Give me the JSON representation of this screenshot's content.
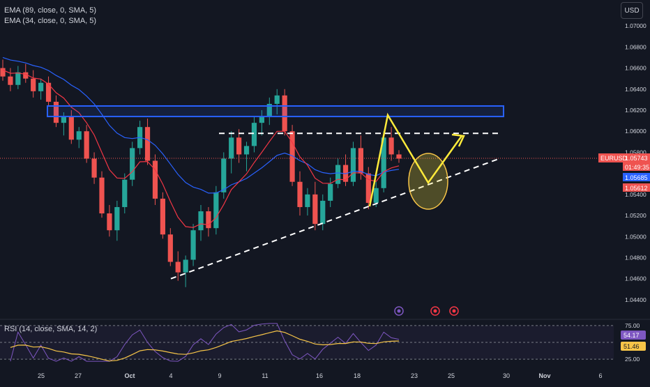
{
  "indicators": {
    "ema_slow_label": "EMA (89, close, 0, SMA, 5)",
    "ema_fast_label": "EMA (34, close, 0, SMA, 5)",
    "rsi_label": "RSI (14, close, SMA, 14, 2)"
  },
  "toolbar": {
    "currency": "USD"
  },
  "colors": {
    "background": "#131722",
    "candle_up": "#26a69a",
    "candle_down": "#ef5350",
    "ema_slow": "#2962ff",
    "ema_fast": "#f23645",
    "rsi_line": "#7e57c2",
    "rsi_ma": "#f7c548",
    "resistance_box": "#2962ff",
    "projection": "#ffeb3b"
  },
  "chart_data": {
    "type": "candlestick",
    "symbol": "EURUSD",
    "price_axis": {
      "ticks": [
        "1.07000",
        "1.06800",
        "1.06600",
        "1.06400",
        "1.06200",
        "1.06000",
        "1.05800",
        "1.05400",
        "1.05200",
        "1.05000",
        "1.04800",
        "1.04600",
        "1.04400"
      ],
      "range": [
        1.043,
        1.0718
      ]
    },
    "time_axis": {
      "labels": [
        "25",
        "27",
        "Oct",
        "4",
        "9",
        "11",
        "16",
        "18",
        "23",
        "25",
        "30",
        "Nov",
        "6"
      ]
    },
    "price_badges": {
      "last_symbol": "EURUSD",
      "last_price": "1.05743",
      "countdown": "01:49:35",
      "ema_slow_value": "1.05685",
      "ema_fast_value": "1.05612"
    },
    "rsi": {
      "axis_labels": [
        "75.00",
        "25.00"
      ],
      "value": "54.17",
      "ma_value": "51.46",
      "range": [
        20,
        80
      ]
    },
    "levels": {
      "resistance_zone": [
        1.0614,
        1.0624
      ],
      "dashed_resistance": 1.0598,
      "support_trend_start": [
        "4",
        1.046
      ],
      "support_trend_end": [
        "30",
        1.0574
      ]
    },
    "candles_approx": [
      [
        1.066,
        1.0668,
        1.0648,
        1.0652
      ],
      [
        1.0652,
        1.066,
        1.0638,
        1.0644
      ],
      [
        1.0644,
        1.0662,
        1.064,
        1.0656
      ],
      [
        1.0656,
        1.0664,
        1.0646,
        1.065
      ],
      [
        1.065,
        1.0658,
        1.0632,
        1.0638
      ],
      [
        1.0638,
        1.065,
        1.063,
        1.0646
      ],
      [
        1.0646,
        1.0652,
        1.0624,
        1.0628
      ],
      [
        1.0628,
        1.0634,
        1.0604,
        1.0608
      ],
      [
        1.0608,
        1.0618,
        1.0596,
        1.0614
      ],
      [
        1.0614,
        1.062,
        1.0588,
        1.0592
      ],
      [
        1.0592,
        1.0604,
        1.0584,
        1.06
      ],
      [
        1.06,
        1.0606,
        1.057,
        1.0574
      ],
      [
        1.0574,
        1.058,
        1.055,
        1.0556
      ],
      [
        1.0556,
        1.0562,
        1.0518,
        1.0522
      ],
      [
        1.0522,
        1.053,
        1.05,
        1.0506
      ],
      [
        1.0506,
        1.0534,
        1.0496,
        1.0528
      ],
      [
        1.0528,
        1.056,
        1.0522,
        1.0554
      ],
      [
        1.0554,
        1.059,
        1.0548,
        1.0584
      ],
      [
        1.0584,
        1.061,
        1.0578,
        1.0604
      ],
      [
        1.0604,
        1.0612,
        1.0568,
        1.0572
      ],
      [
        1.0572,
        1.0578,
        1.053,
        1.0536
      ],
      [
        1.0536,
        1.0542,
        1.0498,
        1.0502
      ],
      [
        1.0502,
        1.0508,
        1.0472,
        1.0476
      ],
      [
        1.0476,
        1.0486,
        1.0458,
        1.0466
      ],
      [
        1.0466,
        1.0482,
        1.0452,
        1.0478
      ],
      [
        1.0478,
        1.0512,
        1.0472,
        1.0506
      ],
      [
        1.0506,
        1.053,
        1.0496,
        1.0524
      ],
      [
        1.0524,
        1.0528,
        1.05,
        1.0508
      ],
      [
        1.0508,
        1.0548,
        1.0502,
        1.0542
      ],
      [
        1.0542,
        1.058,
        1.0536,
        1.0574
      ],
      [
        1.0574,
        1.06,
        1.056,
        1.0594
      ],
      [
        1.0594,
        1.0602,
        1.057,
        1.0578
      ],
      [
        1.0578,
        1.059,
        1.0562,
        1.0586
      ],
      [
        1.0586,
        1.0614,
        1.058,
        1.0608
      ],
      [
        1.0608,
        1.062,
        1.0596,
        1.0614
      ],
      [
        1.0614,
        1.0632,
        1.0606,
        1.0626
      ],
      [
        1.0626,
        1.064,
        1.0616,
        1.0634
      ],
      [
        1.0634,
        1.064,
        1.0596,
        1.06
      ],
      [
        1.06,
        1.0606,
        1.0548,
        1.0552
      ],
      [
        1.0552,
        1.0562,
        1.052,
        1.0528
      ],
      [
        1.0528,
        1.0546,
        1.052,
        1.054
      ],
      [
        1.054,
        1.0552,
        1.0506,
        1.0512
      ],
      [
        1.0512,
        1.054,
        1.0506,
        1.0534
      ],
      [
        1.0534,
        1.0556,
        1.0528,
        1.055
      ],
      [
        1.055,
        1.0574,
        1.0546,
        1.0568
      ],
      [
        1.0568,
        1.0578,
        1.0548,
        1.0552
      ],
      [
        1.0552,
        1.059,
        1.0548,
        1.0584
      ],
      [
        1.0584,
        1.0596,
        1.0554,
        1.056
      ],
      [
        1.056,
        1.0566,
        1.0526,
        1.0532
      ],
      [
        1.0532,
        1.0552,
        1.0528,
        1.0546
      ],
      [
        1.0546,
        1.06,
        1.0542,
        1.0594
      ],
      [
        1.0594,
        1.0604,
        1.0572,
        1.0578
      ],
      [
        1.0578,
        1.0582,
        1.057,
        1.0574
      ]
    ]
  }
}
